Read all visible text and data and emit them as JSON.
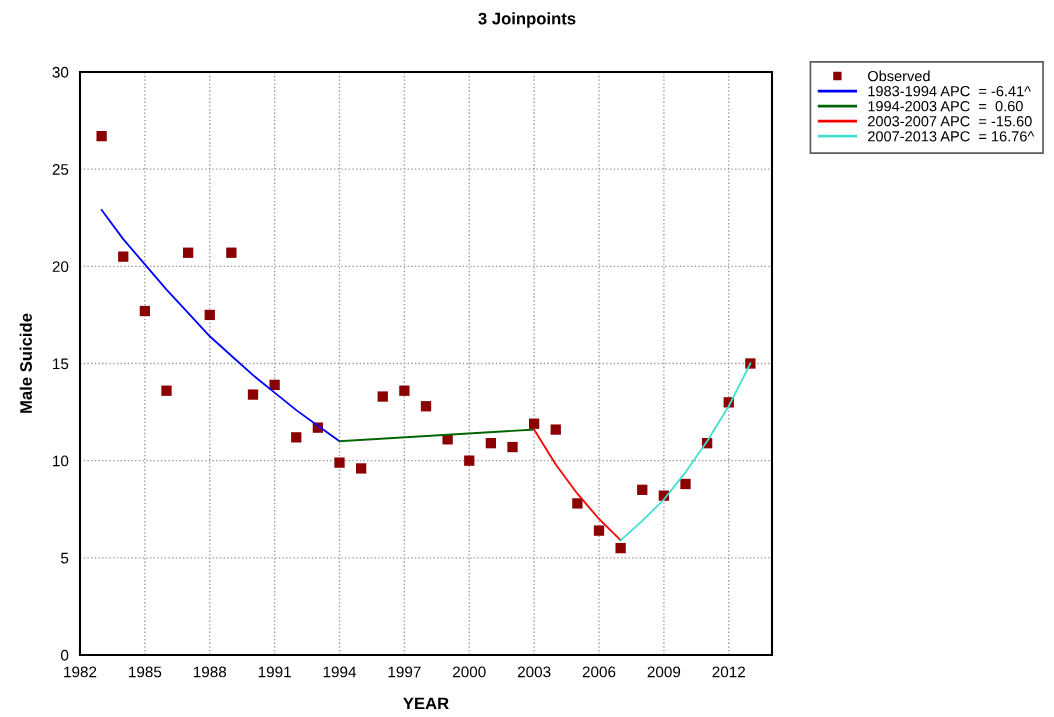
{
  "chart_data": {
    "type": "line",
    "title": "3 Joinpoints",
    "xlabel": "YEAR",
    "ylabel": "Male Suicide",
    "xlim": [
      1982,
      2014
    ],
    "xticks": [
      1982,
      1985,
      1988,
      1991,
      1994,
      1997,
      2000,
      2003,
      2006,
      2009,
      2012
    ],
    "ylim": [
      0,
      30
    ],
    "yticks": [
      0,
      5,
      10,
      15,
      20,
      25,
      30
    ],
    "grid": true,
    "legend": "top right",
    "series": [
      {
        "name": "Observed",
        "type": "scatter",
        "marker": "square",
        "color": "#8b0000",
        "x": [
          1983,
          1984,
          1985,
          1986,
          1987,
          1988,
          1989,
          1990,
          1991,
          1992,
          1993,
          1994,
          1995,
          1996,
          1997,
          1998,
          1999,
          2000,
          2001,
          2002,
          2003,
          2004,
          2005,
          2006,
          2007,
          2008,
          2009,
          2010,
          2011,
          2012,
          2013
        ],
        "values": [
          26.7,
          20.5,
          17.7,
          13.6,
          20.7,
          17.5,
          20.7,
          13.4,
          13.9,
          11.2,
          11.7,
          9.9,
          9.6,
          13.3,
          13.6,
          12.8,
          11.1,
          10.0,
          10.9,
          10.7,
          11.9,
          11.6,
          7.8,
          6.4,
          5.5,
          8.5,
          8.2,
          8.8,
          10.9,
          13.0,
          15.0
        ]
      },
      {
        "name": "1983-1994 APC  = -6.41^",
        "marker": "none",
        "line_style": "solid",
        "color": "#0000ff",
        "x": [
          1983,
          1984,
          1985,
          1986,
          1987,
          1988,
          1989,
          1990,
          1991,
          1992,
          1993,
          1994
        ],
        "values": [
          22.9,
          21.4,
          20.1,
          18.8,
          17.6,
          16.4,
          15.4,
          14.4,
          13.5,
          12.6,
          11.8,
          11.0
        ]
      },
      {
        "name": "1994-2003 APC  =  0.60",
        "marker": "none",
        "line_style": "solid",
        "color": "#006400",
        "x": [
          1994,
          2003
        ],
        "values": [
          11.0,
          11.6
        ]
      },
      {
        "name": "2003-2007 APC  = -15.60",
        "marker": "none",
        "line_style": "solid",
        "color": "#ff0000",
        "x": [
          2003,
          2004,
          2005,
          2006,
          2007
        ],
        "values": [
          11.6,
          9.8,
          8.3,
          7.0,
          5.9
        ]
      },
      {
        "name": "2007-2013 APC  = 16.76^",
        "marker": "none",
        "line_style": "solid",
        "color": "#40e0d0",
        "x": [
          2007,
          2008,
          2009,
          2010,
          2011,
          2012,
          2013
        ],
        "values": [
          5.9,
          6.9,
          8.0,
          9.4,
          11.0,
          12.8,
          15.0
        ]
      }
    ]
  }
}
